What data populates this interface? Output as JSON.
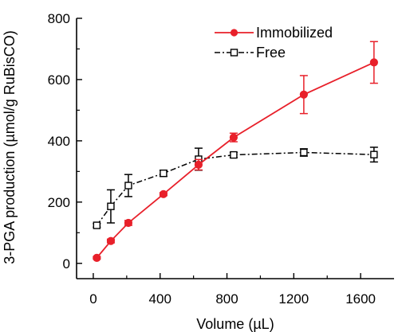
{
  "chart_data": {
    "type": "line",
    "xlabel": "Volume (µL)",
    "ylabel": "3-PGA production (µmol/g RuBisCO)",
    "xlim": [
      -100,
      1800
    ],
    "ylim": [
      -50,
      800
    ],
    "xticks": [
      0,
      400,
      800,
      1200,
      1600
    ],
    "yticks": [
      0,
      200,
      400,
      600,
      800
    ],
    "xtick_labels": [
      "0",
      "400",
      "800",
      "1200",
      "1600"
    ],
    "ytick_labels": [
      "0",
      "200",
      "400",
      "600",
      "800"
    ],
    "legend_position": "top-right",
    "grid": false,
    "series": [
      {
        "name": "Immobilized",
        "color": "#e8202a",
        "line_style": "solid",
        "marker": "filled-circle",
        "x": [
          21,
          105,
          210,
          420,
          630,
          840,
          1260,
          1680
        ],
        "y": [
          18,
          73,
          132,
          226,
          322,
          411,
          551,
          656
        ],
        "err": [
          4,
          6,
          8,
          5,
          17,
          14,
          62,
          68
        ]
      },
      {
        "name": "Free",
        "color": "#000000",
        "line_style": "dash-dot",
        "marker": "open-square",
        "x": [
          21,
          105,
          210,
          420,
          630,
          840,
          1260,
          1680
        ],
        "y": [
          124,
          186,
          254,
          294,
          340,
          354,
          362,
          355
        ],
        "err": [
          6,
          54,
          36,
          10,
          36,
          8,
          12,
          24
        ]
      }
    ]
  }
}
